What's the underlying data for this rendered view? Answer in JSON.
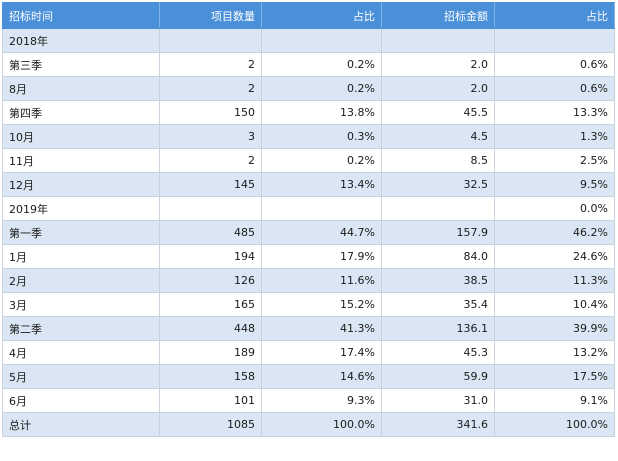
{
  "header": {
    "col_time": "招标时间",
    "col_count": "项目数量",
    "col_count_share": "占比",
    "col_amount": "招标金额",
    "col_amount_share": "占比"
  },
  "rows": [
    {
      "time": "2018年",
      "count": "",
      "count_share": "",
      "amount": "",
      "amount_share": ""
    },
    {
      "time": "第三季",
      "count": "2",
      "count_share": "0.2%",
      "amount": "2.0",
      "amount_share": "0.6%"
    },
    {
      "time": "8月",
      "count": "2",
      "count_share": "0.2%",
      "amount": "2.0",
      "amount_share": "0.6%"
    },
    {
      "time": "第四季",
      "count": "150",
      "count_share": "13.8%",
      "amount": "45.5",
      "amount_share": "13.3%"
    },
    {
      "time": "10月",
      "count": "3",
      "count_share": "0.3%",
      "amount": "4.5",
      "amount_share": "1.3%"
    },
    {
      "time": "11月",
      "count": "2",
      "count_share": "0.2%",
      "amount": "8.5",
      "amount_share": "2.5%"
    },
    {
      "time": "12月",
      "count": "145",
      "count_share": "13.4%",
      "amount": "32.5",
      "amount_share": "9.5%"
    },
    {
      "time": "2019年",
      "count": "",
      "count_share": "",
      "amount": "",
      "amount_share": "0.0%"
    },
    {
      "time": "第一季",
      "count": "485",
      "count_share": "44.7%",
      "amount": "157.9",
      "amount_share": "46.2%"
    },
    {
      "time": "1月",
      "count": "194",
      "count_share": "17.9%",
      "amount": "84.0",
      "amount_share": "24.6%"
    },
    {
      "time": "2月",
      "count": "126",
      "count_share": "11.6%",
      "amount": "38.5",
      "amount_share": "11.3%"
    },
    {
      "time": "3月",
      "count": "165",
      "count_share": "15.2%",
      "amount": "35.4",
      "amount_share": "10.4%"
    },
    {
      "time": "第二季",
      "count": "448",
      "count_share": "41.3%",
      "amount": "136.1",
      "amount_share": "39.9%"
    },
    {
      "time": "4月",
      "count": "189",
      "count_share": "17.4%",
      "amount": "45.3",
      "amount_share": "13.2%"
    },
    {
      "time": "5月",
      "count": "158",
      "count_share": "14.6%",
      "amount": "59.9",
      "amount_share": "17.5%"
    },
    {
      "time": "6月",
      "count": "101",
      "count_share": "9.3%",
      "amount": "31.0",
      "amount_share": "9.1%"
    }
  ],
  "total": {
    "time": "总计",
    "count": "1085",
    "count_share": "100.0%",
    "amount": "341.6",
    "amount_share": "100.0%"
  }
}
